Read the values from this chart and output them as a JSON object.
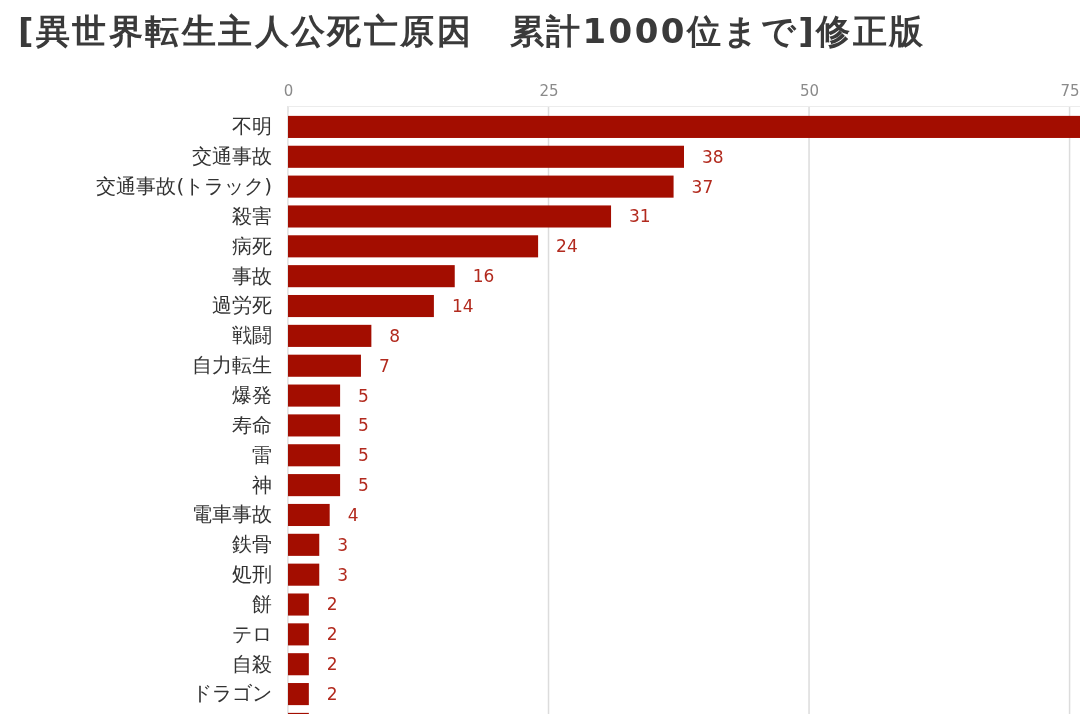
{
  "chart_data": {
    "type": "bar",
    "orientation": "horizontal",
    "title": "[異世界転生主人公死亡原因　累計1000位まで]修正版",
    "categories": [
      "不明",
      "交通事故",
      "交通事故(トラック)",
      "殺害",
      "病死",
      "事故",
      "過労死",
      "戦闘",
      "自力転生",
      "爆発",
      "寿命",
      "雷",
      "神",
      "電車事故",
      "鉄骨",
      "処刑",
      "餅",
      "テロ",
      "自殺",
      "ドラゴン",
      null
    ],
    "values": [
      76,
      38,
      37,
      31,
      24,
      16,
      14,
      8,
      7,
      5,
      5,
      5,
      5,
      4,
      3,
      3,
      2,
      2,
      2,
      2,
      2
    ],
    "value_labels": [
      null,
      "38",
      "37",
      "31",
      "24",
      "16",
      "14",
      "8",
      "7",
      "5",
      "5",
      "5",
      "5",
      "4",
      "3",
      "3",
      "2",
      "2",
      "2",
      "2",
      null
    ],
    "color": "#a30d00",
    "xlim": [
      0,
      76
    ],
    "xticks": [
      0,
      25,
      50,
      75
    ],
    "grid": "x"
  }
}
